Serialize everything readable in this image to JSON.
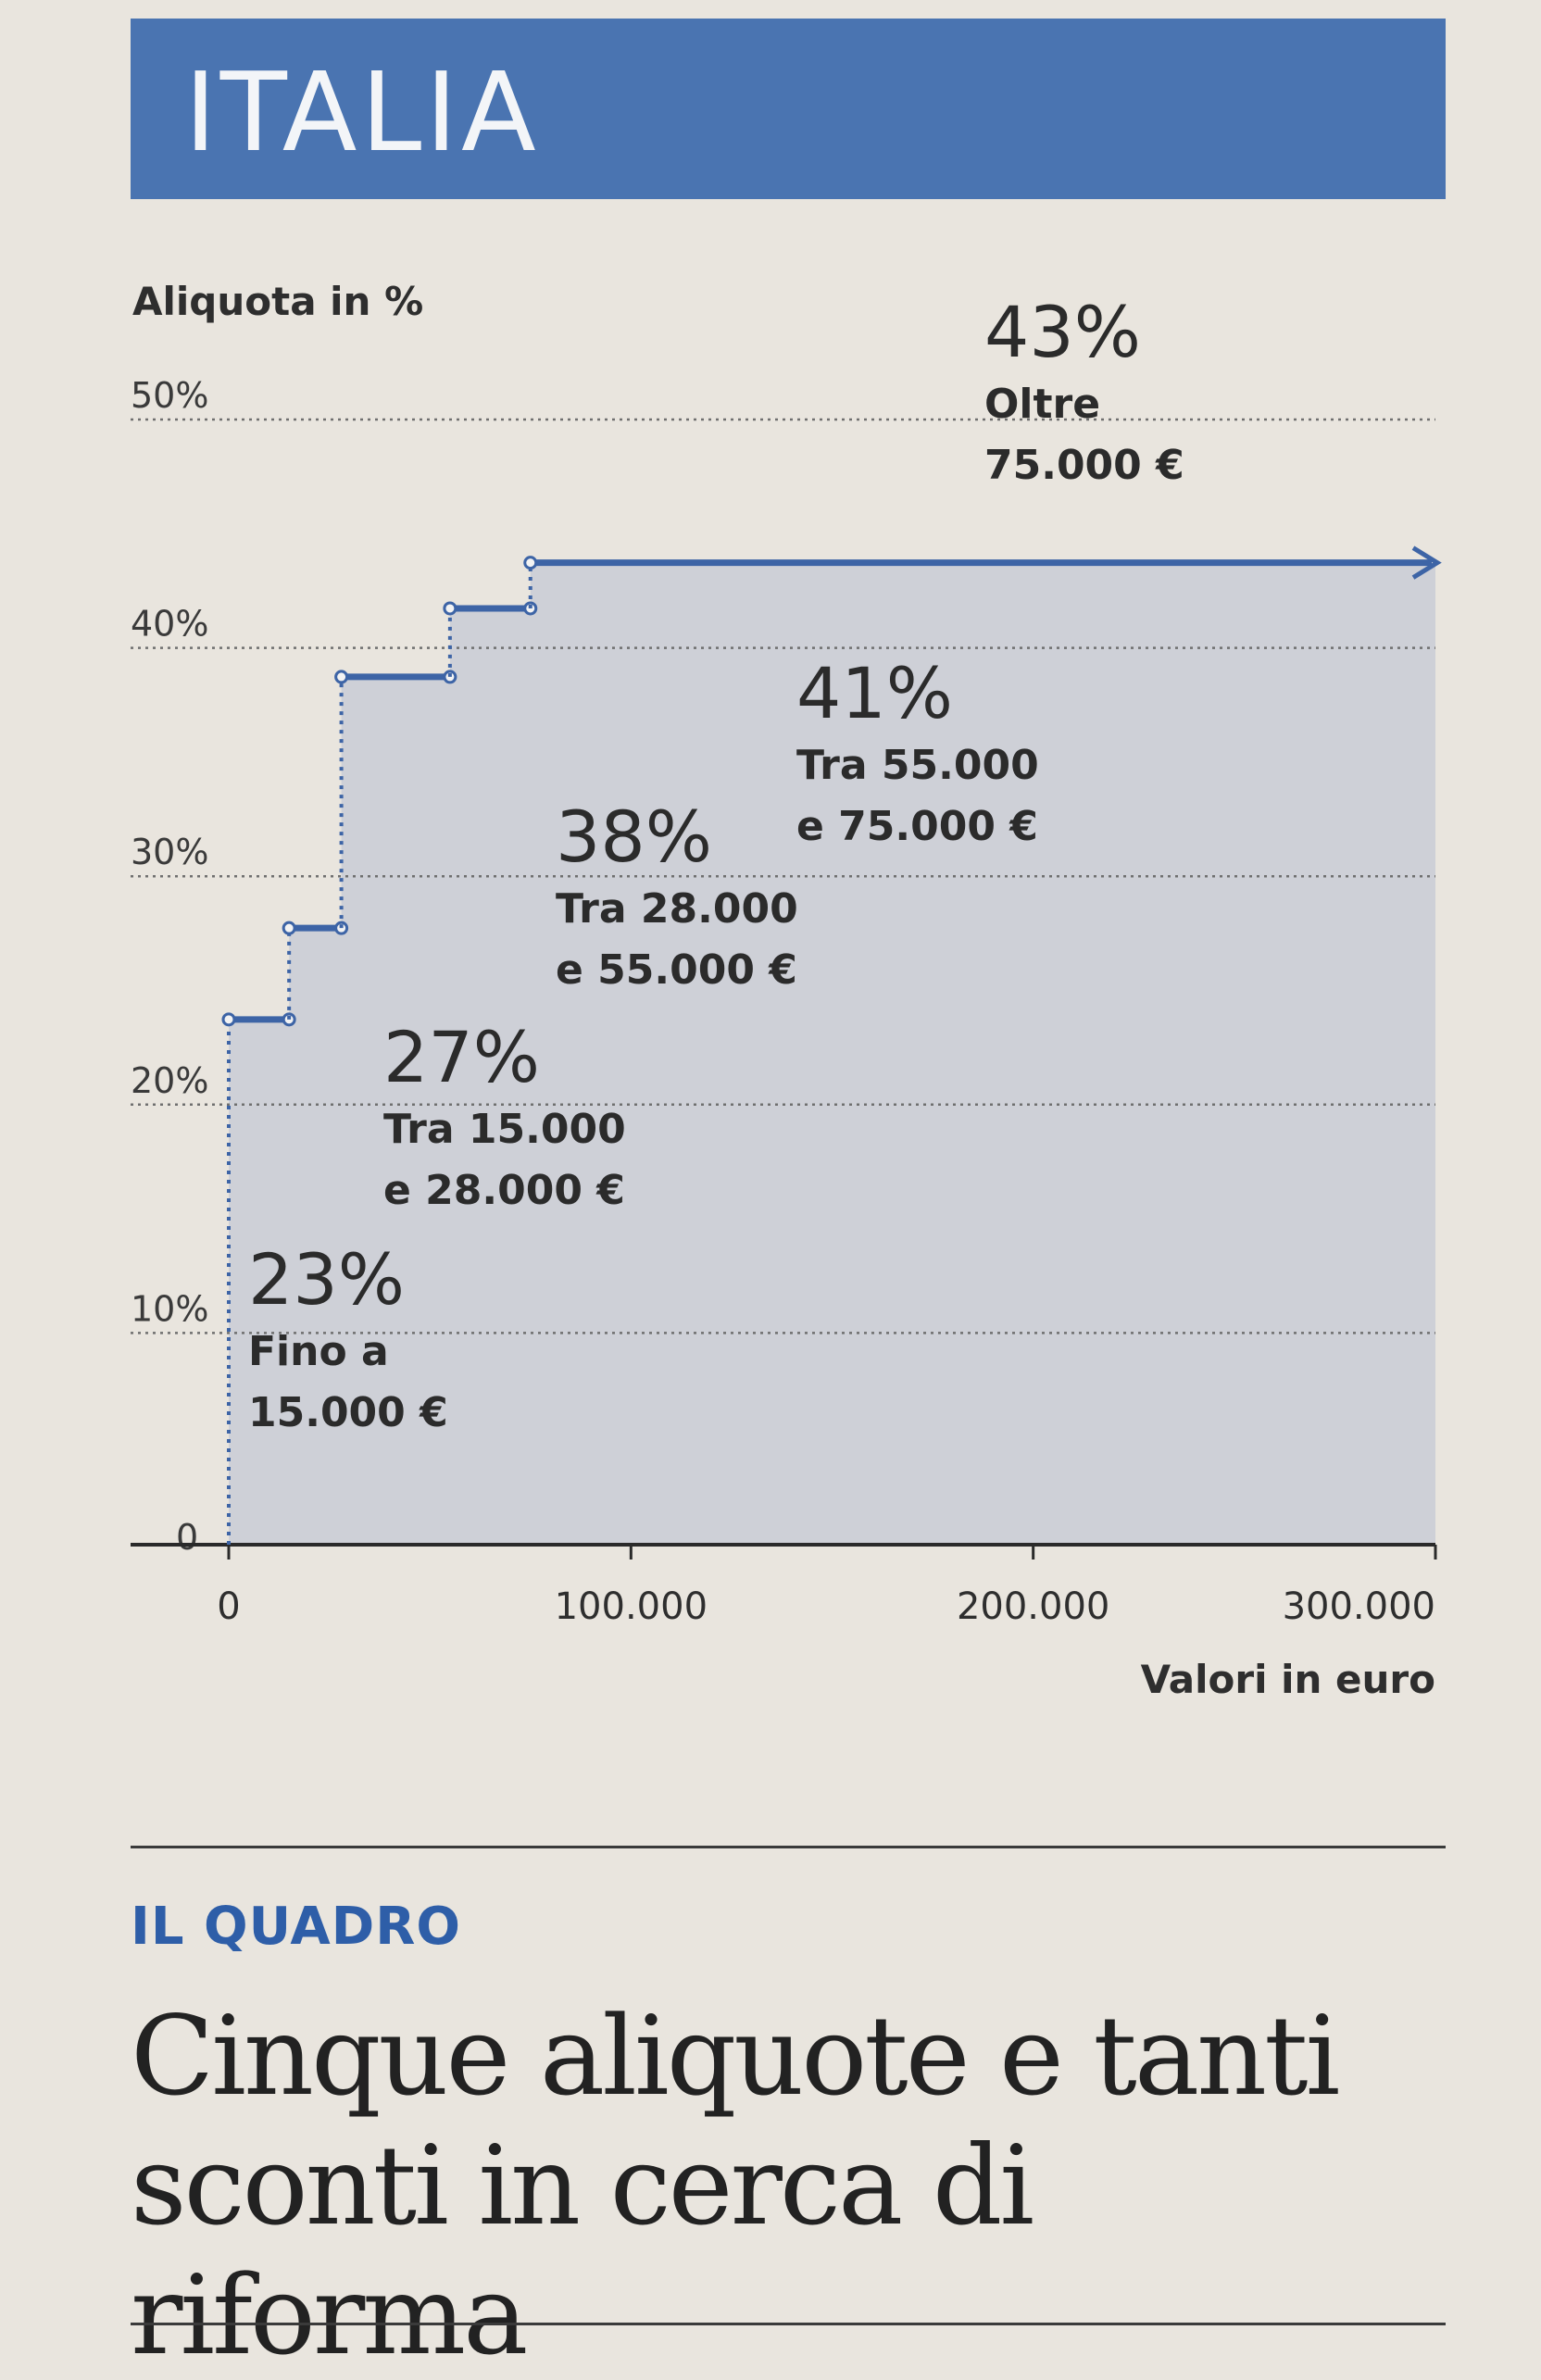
{
  "section": {
    "title": "ITALIA",
    "accent": "#4a74b1"
  },
  "chart_data": {
    "type": "step-area",
    "ylabel": "Aliquota in %",
    "xlabel": "Valori in euro",
    "ylim": [
      0,
      50
    ],
    "xlim": [
      0,
      300000
    ],
    "yticks": [
      {
        "value": 0,
        "label": "0"
      },
      {
        "value": 10,
        "label": "10%"
      },
      {
        "value": 20,
        "label": "20%"
      },
      {
        "value": 30,
        "label": "30%"
      },
      {
        "value": 40,
        "label": "40%"
      },
      {
        "value": 50,
        "label": "50%"
      }
    ],
    "xticks": [
      {
        "value": 0,
        "label": "0"
      },
      {
        "value": 100000,
        "label": "100.000"
      },
      {
        "value": 200000,
        "label": "200.000"
      },
      {
        "value": 300000,
        "label": "300.000"
      }
    ],
    "brackets": [
      {
        "from": 0,
        "to": 15000,
        "rate": 23,
        "rate_label": "23%",
        "line1": "Fino a",
        "line2": "15.000 €"
      },
      {
        "from": 15000,
        "to": 28000,
        "rate": 27,
        "rate_label": "27%",
        "line1": "Tra 15.000",
        "line2": "e 28.000 €"
      },
      {
        "from": 28000,
        "to": 55000,
        "rate": 38,
        "rate_label": "38%",
        "line1": "Tra 28.000",
        "line2": "e 55.000 €"
      },
      {
        "from": 55000,
        "to": 75000,
        "rate": 41,
        "rate_label": "41%",
        "line1": "Tra 55.000",
        "line2": "e 75.000 €"
      },
      {
        "from": 75000,
        "to": 300000,
        "rate": 43,
        "rate_label": "43%",
        "line1": "Oltre",
        "line2": "75.000 €"
      }
    ],
    "grid": true,
    "line_color": "#3d64a6",
    "fill_color": "#c9cdd6"
  },
  "footer": {
    "kicker": "IL QUADRO",
    "headline": "Cinque aliquote e tanti sconti in cerca di riforma"
  }
}
